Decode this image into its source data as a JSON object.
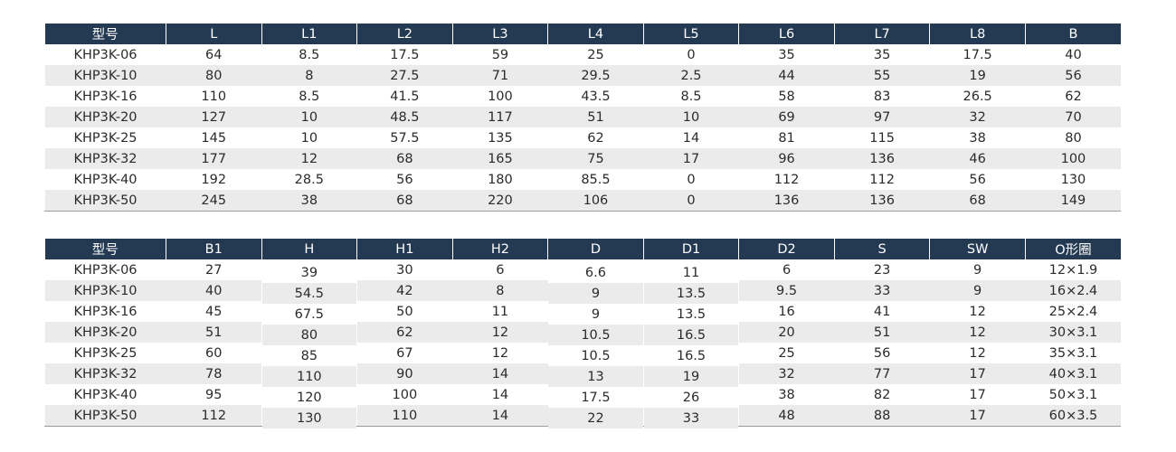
{
  "tables": [
    {
      "headers": [
        "型号",
        "L",
        "L1",
        "L2",
        "L3",
        "L4",
        "L5",
        "L6",
        "L7",
        "L8",
        "B"
      ],
      "rows": [
        [
          "KHP3K-06",
          "64",
          "8.5",
          "17.5",
          "59",
          "25",
          "0",
          "35",
          "35",
          "17.5",
          "40"
        ],
        [
          "KHP3K-10",
          "80",
          "8",
          "27.5",
          "71",
          "29.5",
          "2.5",
          "44",
          "55",
          "19",
          "56"
        ],
        [
          "KHP3K-16",
          "110",
          "8.5",
          "41.5",
          "100",
          "43.5",
          "8.5",
          "58",
          "83",
          "26.5",
          "62"
        ],
        [
          "KHP3K-20",
          "127",
          "10",
          "48.5",
          "117",
          "51",
          "10",
          "69",
          "97",
          "32",
          "70"
        ],
        [
          "KHP3K-25",
          "145",
          "10",
          "57.5",
          "135",
          "62",
          "14",
          "81",
          "115",
          "38",
          "80"
        ],
        [
          "KHP3K-32",
          "177",
          "12",
          "68",
          "165",
          "75",
          "17",
          "96",
          "136",
          "46",
          "100"
        ],
        [
          "KHP3K-40",
          "192",
          "28.5",
          "56",
          "180",
          "85.5",
          "0",
          "112",
          "112",
          "56",
          "130"
        ],
        [
          "KHP3K-50",
          "245",
          "38",
          "68",
          "220",
          "106",
          "0",
          "136",
          "136",
          "68",
          "149"
        ]
      ]
    },
    {
      "headers": [
        "型号",
        "B1",
        "H",
        "H1",
        "H2",
        "D",
        "D1",
        "D2",
        "S",
        "SW",
        "O形圈"
      ],
      "rows": [
        [
          "KHP3K-06",
          "27",
          "39",
          "30",
          "6",
          "6.6",
          "11",
          "6",
          "23",
          "9",
          "12×1.9"
        ],
        [
          "KHP3K-10",
          "40",
          "54.5",
          "42",
          "8",
          "9",
          "13.5",
          "9.5",
          "33",
          "9",
          "16×2.4"
        ],
        [
          "KHP3K-16",
          "45",
          "67.5",
          "50",
          "11",
          "9",
          "13.5",
          "16",
          "41",
          "12",
          "25×2.4"
        ],
        [
          "KHP3K-20",
          "51",
          "80",
          "62",
          "12",
          "10.5",
          "16.5",
          "20",
          "51",
          "12",
          "30×3.1"
        ],
        [
          "KHP3K-25",
          "60",
          "85",
          "67",
          "12",
          "10.5",
          "16.5",
          "25",
          "56",
          "12",
          "35×3.1"
        ],
        [
          "KHP3K-32",
          "78",
          "110",
          "90",
          "14",
          "13",
          "19",
          "32",
          "77",
          "17",
          "40×3.1"
        ],
        [
          "KHP3K-40",
          "95",
          "120",
          "100",
          "14",
          "17.5",
          "26",
          "38",
          "82",
          "17",
          "50×3.1"
        ],
        [
          "KHP3K-50",
          "112",
          "130",
          "110",
          "14",
          "22",
          "33",
          "48",
          "88",
          "17",
          "60×3.5"
        ]
      ]
    }
  ]
}
